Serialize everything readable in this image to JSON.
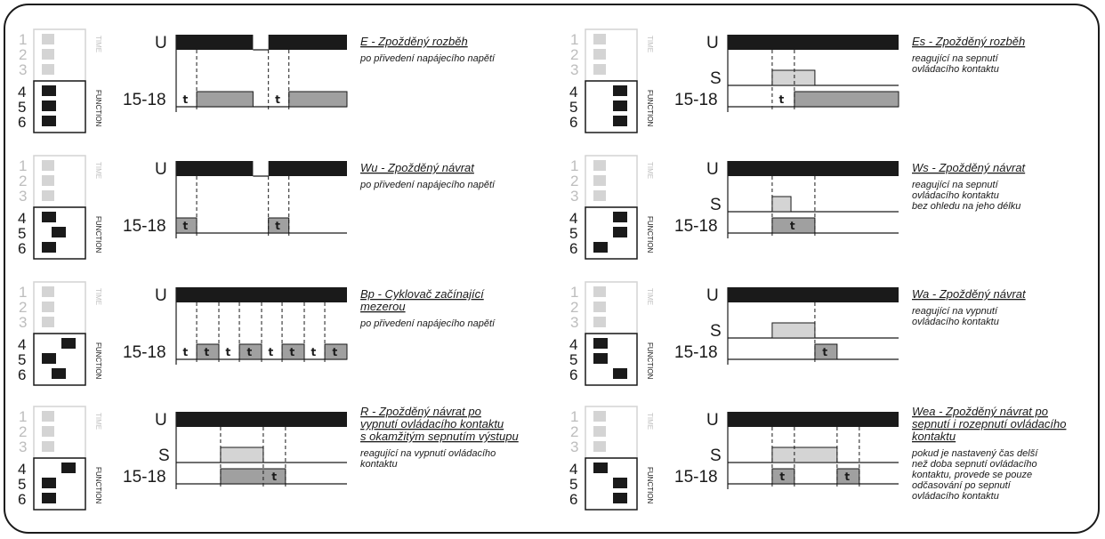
{
  "labels": {
    "u": "U",
    "s": "S",
    "out": "15-18",
    "t": "t",
    "time": "TIME",
    "function": "FUNCTION",
    "numbers": [
      "1",
      "2",
      "3",
      "4",
      "5",
      "6"
    ]
  },
  "colors": {
    "ink": "#1a1a1a",
    "light": "#d4d4d4",
    "mid": "#a0a0a0",
    "dim": "#c0c0c0"
  },
  "modes": [
    {
      "id": "E",
      "title": [
        "E - Zpožděný rozběh"
      ],
      "desc": [
        "po přivedení napájecího napětí"
      ],
      "switches": [
        1,
        1,
        1
      ],
      "has_s": false,
      "u": [
        [
          0,
          0.45
        ],
        [
          0.54,
          1
        ]
      ],
      "s": [],
      "out": [
        {
          "a": 0.12,
          "b": 0.45,
          "fill": "mid",
          "label": ""
        },
        {
          "a": 0.66,
          "b": 1,
          "fill": "mid",
          "label": ""
        }
      ],
      "t_free": [
        0.06,
        0.6
      ],
      "dashes": [
        0.12,
        0.54,
        0.66
      ]
    },
    {
      "id": "Es",
      "title": [
        "Es - Zpožděný rozběh"
      ],
      "desc": [
        "reagující na sepnutí",
        "ovládacího kontaktu"
      ],
      "switches": [
        2,
        2,
        2
      ],
      "has_s": true,
      "u": [
        [
          0,
          1
        ]
      ],
      "s": [
        [
          0.26,
          0.51
        ]
      ],
      "out": [
        {
          "a": 0.39,
          "b": 1,
          "fill": "mid",
          "label": ""
        }
      ],
      "t_free": [
        0.32
      ],
      "dashes": [
        0.26,
        0.39
      ]
    },
    {
      "id": "Wu",
      "title": [
        "Wu - Zpožděný návrat"
      ],
      "desc": [
        "po přivedení napájecího napětí"
      ],
      "switches": [
        1,
        3,
        1
      ],
      "has_s": false,
      "u": [
        [
          0,
          0.45
        ],
        [
          0.54,
          1
        ]
      ],
      "s": [],
      "out": [
        {
          "a": 0,
          "b": 0.12,
          "fill": "mid",
          "label": "t"
        },
        {
          "a": 0.54,
          "b": 0.66,
          "fill": "mid",
          "label": "t"
        }
      ],
      "t_free": [],
      "dashes": [
        0.12,
        0.54,
        0.66
      ]
    },
    {
      "id": "Ws",
      "title": [
        "Ws - Zpožděný návrat"
      ],
      "desc": [
        "reagující na sepnutí",
        "ovládacího kontaktu",
        "bez ohledu na jeho délku"
      ],
      "switches": [
        2,
        2,
        1
      ],
      "has_s": true,
      "u": [
        [
          0,
          1
        ]
      ],
      "s": [
        [
          0.26,
          0.37
        ]
      ],
      "out": [
        {
          "a": 0.26,
          "b": 0.51,
          "fill": "mid",
          "label": "t"
        }
      ],
      "t_free": [],
      "dashes": [
        0.26,
        0.51
      ]
    },
    {
      "id": "Bp",
      "title": [
        "Bp - Cyklovač začínající",
        "mezerou"
      ],
      "desc": [
        "po přivedení napájecího napětí"
      ],
      "switches": [
        2,
        1,
        3
      ],
      "has_s": false,
      "u": [
        [
          0,
          1
        ]
      ],
      "s": [],
      "out": [
        {
          "a": 0.12,
          "b": 0.25,
          "fill": "mid",
          "label": "t"
        },
        {
          "a": 0.37,
          "b": 0.5,
          "fill": "mid",
          "label": "t"
        },
        {
          "a": 0.62,
          "b": 0.75,
          "fill": "mid",
          "label": "t"
        },
        {
          "a": 0.87,
          "b": 1,
          "fill": "mid",
          "label": "t"
        }
      ],
      "t_free": [
        0.06,
        0.31,
        0.56,
        0.81
      ],
      "dashes": [
        0.12,
        0.25,
        0.37,
        0.5,
        0.62,
        0.75,
        0.87
      ]
    },
    {
      "id": "Wa",
      "title": [
        "Wa - Zpožděný návrat"
      ],
      "desc": [
        "reagující na vypnutí",
        "ovládacího kontaktu"
      ],
      "switches": [
        1,
        1,
        2
      ],
      "has_s": true,
      "u": [
        [
          0,
          1
        ]
      ],
      "s": [
        [
          0.26,
          0.51
        ]
      ],
      "out": [
        {
          "a": 0.51,
          "b": 0.64,
          "fill": "mid",
          "label": "t"
        }
      ],
      "t_free": [],
      "dashes": [
        0.51
      ]
    },
    {
      "id": "R",
      "title": [
        "R - Zpožděný návrat po",
        "vypnutí ovládacího kontaktu",
        "s okamžitým sepnutím výstupu"
      ],
      "desc": [
        "reagující na vypnutí ovládacího",
        "kontaktu"
      ],
      "switches": [
        2,
        1,
        1
      ],
      "has_s": true,
      "u": [
        [
          0,
          1
        ]
      ],
      "s": [
        [
          0.26,
          0.51
        ]
      ],
      "out": [
        {
          "a": 0.26,
          "b": 0.64,
          "fill": "mid",
          "label": "t",
          "label_pos": 0.58
        }
      ],
      "t_free": [],
      "dashes": [
        0.26,
        0.51,
        0.64
      ]
    },
    {
      "id": "Wea",
      "title": [
        "Wea - Zpožděný návrat po",
        "sepnutí i rozepnutí ovládacího",
        "kontaktu"
      ],
      "desc": [
        "pokud je nastavený čas delší",
        "než doba sepnutí ovládacího",
        "kontaktu, provede se pouze",
        "odčasování po sepnutí",
        "ovládacího kontaktu"
      ],
      "switches": [
        1,
        2,
        2
      ],
      "has_s": true,
      "u": [
        [
          0,
          1
        ]
      ],
      "s": [
        [
          0.26,
          0.64
        ]
      ],
      "out": [
        {
          "a": 0.26,
          "b": 0.39,
          "fill": "mid",
          "label": "t"
        },
        {
          "a": 0.64,
          "b": 0.77,
          "fill": "mid",
          "label": "t"
        }
      ],
      "t_free": [],
      "dashes": [
        0.26,
        0.39,
        0.64,
        0.77
      ]
    }
  ]
}
